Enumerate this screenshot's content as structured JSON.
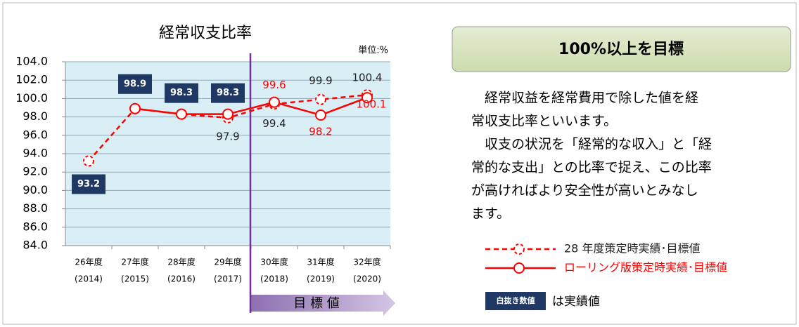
{
  "chart_data": {
    "type": "line",
    "title": "経常収支比率",
    "unit": "単位:%",
    "categories": [
      "26年度",
      "27年度",
      "28年度",
      "29年度",
      "30年度",
      "31年度",
      "32年度"
    ],
    "category_years": [
      "(2014)",
      "(2015)",
      "(2016)",
      "(2017)",
      "(2018)",
      "(2019)",
      "(2020)"
    ],
    "series": [
      {
        "name": "28 年度策定時実績･目標値",
        "color": "#ff0000",
        "dashed": true,
        "values": [
          93.2,
          98.9,
          98.3,
          97.9,
          99.4,
          99.9,
          100.4
        ]
      },
      {
        "name": "ローリング版策定時実績･目標値",
        "color": "#ff0000",
        "dashed": false,
        "values": [
          null,
          98.9,
          98.3,
          98.3,
          99.6,
          98.2,
          100.1
        ]
      }
    ],
    "ylim": [
      84,
      104
    ],
    "yticks": [
      {
        "value": 84,
        "label": "84.0"
      },
      {
        "value": 86,
        "label": "86.0"
      },
      {
        "value": 88,
        "label": "88.0"
      },
      {
        "value": 90,
        "label": "90.0"
      },
      {
        "value": 92,
        "label": "92.0"
      },
      {
        "value": 94,
        "label": "94.0"
      },
      {
        "value": 96,
        "label": "96.0"
      },
      {
        "value": 98,
        "label": "98.0"
      },
      {
        "value": 100,
        "label": "100.0"
      },
      {
        "value": 102,
        "label": "102.0"
      },
      {
        "value": 104,
        "label": "104.0"
      }
    ],
    "grid": true,
    "target_annotation": "目 標 値"
  },
  "panel": {
    "heading": "100%以上を目標",
    "paragraphs": [
      [
        "　経常収益を経常費用で除した値を経",
        "常収支比率といいます。"
      ],
      [
        "　収支の状況を「経常的な収入」と「経",
        "常的な支出」との比率で捉え、この比率",
        "が高ければより安全性が高いとみなし",
        "ます。"
      ]
    ],
    "note_box": "白抜き数値",
    "note_text": "は実績値"
  }
}
